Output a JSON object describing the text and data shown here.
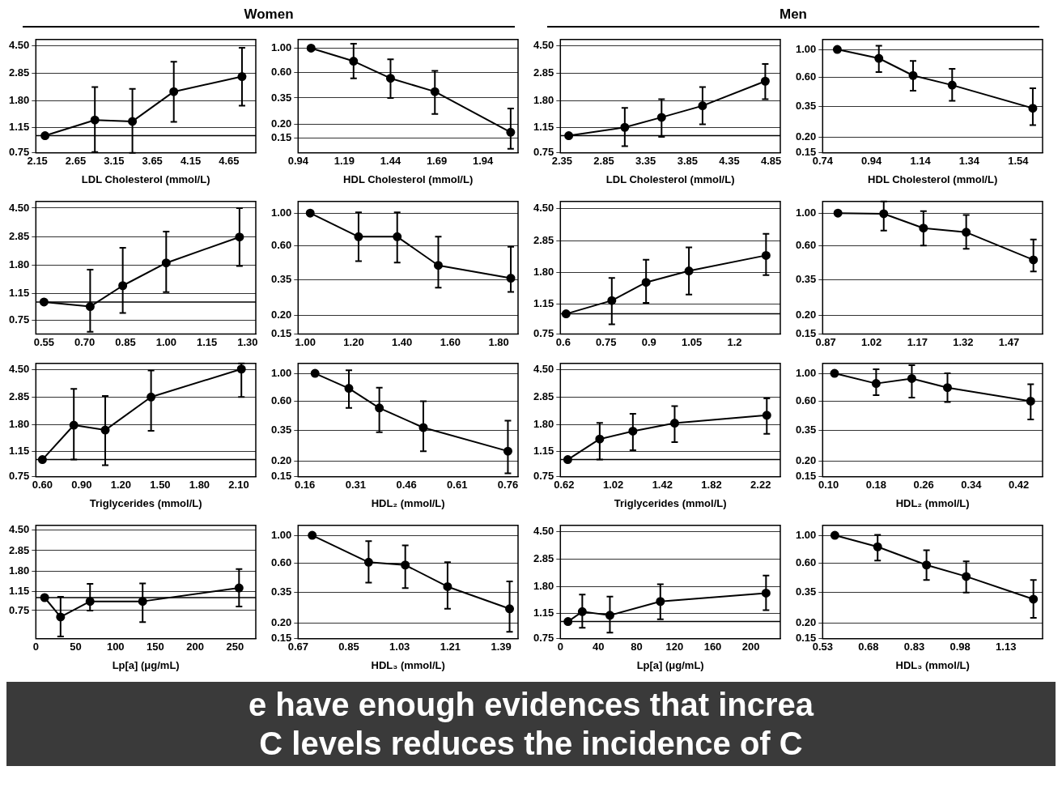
{
  "chart_data": [
    {
      "type": "line",
      "title": "Women",
      "xlabel": "LDL Cholesterol (mmol/L)",
      "x": [
        2.25,
        2.9,
        3.39,
        3.93,
        4.82
      ],
      "series": [
        {
          "color": "#000000",
          "values": [
            1.0,
            1.3,
            1.27,
            2.09,
            2.69
          ],
          "errors": [
            null,
            [
              0.76,
              2.26
            ],
            [
              0.75,
              2.19
            ],
            [
              1.26,
              3.45
            ],
            [
              1.65,
              4.35
            ]
          ]
        }
      ],
      "xlim": [
        2.13,
        5.0
      ],
      "xticks": [
        2.15,
        2.65,
        3.15,
        3.65,
        4.15,
        4.65
      ],
      "ylim": [
        0.75,
        5.0
      ],
      "yticks": [
        {
          "value": 0.75,
          "label": "0.75"
        },
        {
          "value": 1.15,
          "label": "1.15"
        },
        {
          "value": 1.8,
          "label": "1.80"
        },
        {
          "value": 2.85,
          "label": "2.85"
        },
        {
          "value": 4.5,
          "label": "4.50"
        }
      ],
      "ref_lines": [
        {
          "axis": "y",
          "value": 1
        }
      ],
      "log": true,
      "grid": "y",
      "marker": "circle",
      "line_style": "solid",
      "legend": false,
      "annotations": [
        "e have enough evidences that increa",
        "C levels reduces the incidence of C"
      ]
    },
    {
      "type": "line",
      "xlabel": "HDL Cholesterol (mmol/L)",
      "x": [
        1.01,
        1.24,
        1.44,
        1.68,
        2.09
      ],
      "series": [
        {
          "color": "#000000",
          "values": [
            1.0,
            0.76,
            0.53,
            0.4,
            0.17
          ],
          "errors": [
            null,
            [
              0.53,
              1.1
            ],
            [
              0.35,
              0.79
            ],
            [
              0.25,
              0.62
            ],
            [
              0.12,
              0.28
            ]
          ]
        }
      ],
      "xlim": [
        0.94,
        2.13
      ],
      "xticks": [
        0.94,
        1.19,
        1.44,
        1.69,
        1.94
      ],
      "ylim": [
        0.11,
        1.2
      ],
      "yticks": [
        {
          "value": 0.15,
          "label": "0.15"
        },
        {
          "value": 0.2,
          "label": "0.20"
        },
        {
          "value": 0.35,
          "label": "0.35"
        },
        {
          "value": 0.6,
          "label": "0.60"
        },
        {
          "value": 1,
          "label": "1.00"
        }
      ],
      "log": true,
      "grid": "y",
      "marker": "circle",
      "line_style": "solid",
      "legend": false
    },
    {
      "type": "line",
      "title": "Men",
      "xlabel": "LDL Cholesterol (mmol/L)",
      "x": [
        2.43,
        3.1,
        3.54,
        4.03,
        4.78
      ],
      "series": [
        {
          "color": "#000000",
          "values": [
            1.0,
            1.15,
            1.36,
            1.65,
            2.49
          ],
          "errors": [
            null,
            [
              0.84,
              1.59
            ],
            [
              0.98,
              1.84
            ],
            [
              1.21,
              2.26
            ],
            [
              1.84,
              3.32
            ]
          ]
        }
      ],
      "xlim": [
        2.33,
        4.96
      ],
      "xticks": [
        2.35,
        2.85,
        3.35,
        3.85,
        4.35,
        4.85
      ],
      "ylim": [
        0.75,
        5.0
      ],
      "yticks": [
        {
          "value": 0.75,
          "label": "0.75"
        },
        {
          "value": 1.15,
          "label": "1.15"
        },
        {
          "value": 1.8,
          "label": "1.80"
        },
        {
          "value": 2.85,
          "label": "2.85"
        },
        {
          "value": 4.5,
          "label": "4.50"
        }
      ],
      "ref_lines": [
        {
          "axis": "y",
          "value": 1
        }
      ],
      "log": true,
      "grid": "y",
      "marker": "circle",
      "line_style": "solid",
      "legend": false
    },
    {
      "type": "line",
      "xlabel": "HDL Cholesterol (mmol/L)",
      "x": [
        0.8,
        0.97,
        1.11,
        1.27,
        1.6
      ],
      "series": [
        {
          "color": "#000000",
          "values": [
            1.0,
            0.85,
            0.62,
            0.52,
            0.34
          ],
          "errors": [
            null,
            [
              0.66,
              1.07
            ],
            [
              0.47,
              0.81
            ],
            [
              0.39,
              0.7
            ],
            [
              0.25,
              0.49
            ]
          ]
        }
      ],
      "xlim": [
        0.74,
        1.64
      ],
      "xticks": [
        0.74,
        0.94,
        1.14,
        1.34,
        1.54
      ],
      "ylim": [
        0.15,
        1.2
      ],
      "yticks": [
        {
          "value": 0.15,
          "label": "0.15"
        },
        {
          "value": 0.2,
          "label": "0.20"
        },
        {
          "value": 0.35,
          "label": "0.35"
        },
        {
          "value": 0.6,
          "label": "0.60"
        },
        {
          "value": 1,
          "label": "1.00"
        }
      ],
      "log": true,
      "grid": "y",
      "marker": "circle",
      "line_style": "solid",
      "legend": false
    },
    {
      "type": "line",
      "x": [
        0.55,
        0.72,
        0.84,
        1.0,
        1.27
      ],
      "series": [
        {
          "color": "#000000",
          "values": [
            1.0,
            0.93,
            1.3,
            1.87,
            2.83
          ],
          "errors": [
            null,
            [
              0.62,
              1.68
            ],
            [
              0.84,
              2.38
            ],
            [
              1.17,
              3.09
            ],
            [
              1.78,
              4.5
            ]
          ]
        }
      ],
      "xlim": [
        0.52,
        1.33
      ],
      "xticks": [
        0.55,
        {
          "value": 0.7,
          "label": "0.70"
        },
        0.85,
        {
          "value": 1,
          "label": "1.00"
        },
        1.15,
        {
          "value": 1.3,
          "label": "1.30"
        }
      ],
      "ylim": [
        0.6,
        5.0
      ],
      "yticks": [
        {
          "value": 0.75,
          "label": "0.75"
        },
        {
          "value": 1.15,
          "label": "1.15"
        },
        {
          "value": 1.8,
          "label": "1.80"
        },
        {
          "value": 2.85,
          "label": "2.85"
        },
        {
          "value": 4.5,
          "label": "4.50"
        }
      ],
      "ref_lines": [
        {
          "axis": "y",
          "value": 1
        }
      ],
      "log": true,
      "grid": "y",
      "marker": "circle",
      "line_style": "solid",
      "legend": false
    },
    {
      "type": "line",
      "x": [
        1.02,
        1.22,
        1.38,
        1.55,
        1.85
      ],
      "series": [
        {
          "color": "#000000",
          "values": [
            1.0,
            0.69,
            0.69,
            0.44,
            0.36
          ],
          "errors": [
            null,
            [
              0.47,
              1.01
            ],
            [
              0.46,
              1.01
            ],
            [
              0.31,
              0.69
            ],
            [
              0.29,
              0.59
            ]
          ]
        }
      ],
      "xlim": [
        0.97,
        1.88
      ],
      "xticks": [
        {
          "value": 1,
          "label": "1.00"
        },
        {
          "value": 1.2,
          "label": "1.20"
        },
        {
          "value": 1.4,
          "label": "1.40"
        },
        {
          "value": 1.6,
          "label": "1.60"
        },
        {
          "value": 1.8,
          "label": "1.80"
        }
      ],
      "ylim": [
        0.15,
        1.2
      ],
      "yticks": [
        {
          "value": 0.15,
          "label": "0.15"
        },
        {
          "value": 0.2,
          "label": "0.20"
        },
        {
          "value": 0.35,
          "label": "0.35"
        },
        {
          "value": 0.6,
          "label": "0.60"
        },
        {
          "value": 1,
          "label": "1.00"
        }
      ],
      "log": true,
      "grid": "y",
      "marker": "circle",
      "line_style": "solid",
      "legend": false
    },
    {
      "type": "line",
      "x": [
        0.61,
        0.77,
        0.89,
        1.04,
        1.31
      ],
      "series": [
        {
          "color": "#000000",
          "values": [
            1.0,
            1.21,
            1.57,
            1.85,
            2.31
          ],
          "errors": [
            null,
            [
              0.86,
              1.67
            ],
            [
              1.17,
              2.17
            ],
            [
              1.32,
              2.59
            ],
            [
              1.74,
              3.15
            ]
          ]
        }
      ],
      "xlim": [
        0.59,
        1.36
      ],
      "xticks": [
        0.6,
        0.75,
        0.9,
        1.05,
        1.2
      ],
      "ylim": [
        0.75,
        5.0
      ],
      "yticks": [
        {
          "value": 0.75,
          "label": "0.75"
        },
        {
          "value": 1.15,
          "label": "1.15"
        },
        {
          "value": 1.8,
          "label": "1.80"
        },
        {
          "value": 2.85,
          "label": "2.85"
        },
        {
          "value": 4.5,
          "label": "4.50"
        }
      ],
      "ref_lines": [
        {
          "axis": "y",
          "value": 1
        }
      ],
      "log": true,
      "grid": "y",
      "marker": "circle",
      "line_style": "solid",
      "legend": false
    },
    {
      "type": "line",
      "x": [
        0.91,
        1.06,
        1.19,
        1.33,
        1.55
      ],
      "series": [
        {
          "color": "#000000",
          "values": [
            1.0,
            0.99,
            0.79,
            0.74,
            0.48
          ],
          "errors": [
            null,
            [
              0.76,
              1.2
            ],
            [
              0.6,
              1.03
            ],
            [
              0.57,
              0.97
            ],
            [
              0.4,
              0.66
            ]
          ]
        }
      ],
      "xlim": [
        0.86,
        1.58
      ],
      "xticks": [
        0.87,
        1.02,
        1.17,
        1.32,
        1.47
      ],
      "ylim": [
        0.15,
        1.2
      ],
      "yticks": [
        {
          "value": 0.15,
          "label": "0.15"
        },
        {
          "value": 0.2,
          "label": "0.20"
        },
        {
          "value": 0.35,
          "label": "0.35"
        },
        {
          "value": 0.6,
          "label": "0.60"
        },
        {
          "value": 1,
          "label": "1.00"
        }
      ],
      "log": true,
      "grid": "y",
      "marker": "circle",
      "line_style": "solid",
      "legend": false
    },
    {
      "type": "line",
      "xlabel": "Triglycerides (mmol/L)",
      "x": [
        0.6,
        0.84,
        1.08,
        1.43,
        2.12
      ],
      "series": [
        {
          "color": "#000000",
          "values": [
            1.0,
            1.78,
            1.64,
            2.85,
            4.55
          ],
          "errors": [
            null,
            [
              1.0,
              3.27
            ],
            [
              0.91,
              2.9
            ],
            [
              1.62,
              4.45
            ],
            [
              2.85,
              5.0
            ]
          ]
        }
      ],
      "xlim": [
        0.55,
        2.23
      ],
      "xticks": [
        {
          "value": 0.6,
          "label": "0.60"
        },
        {
          "value": 0.9,
          "label": "0.90"
        },
        {
          "value": 1.2,
          "label": "1.20"
        },
        {
          "value": 1.5,
          "label": "1.50"
        },
        {
          "value": 1.8,
          "label": "1.80"
        },
        {
          "value": 2.1,
          "label": "2.10"
        }
      ],
      "ylim": [
        0.75,
        5.0
      ],
      "yticks": [
        {
          "value": 0.75,
          "label": "0.75"
        },
        {
          "value": 1.15,
          "label": "1.15"
        },
        {
          "value": 1.8,
          "label": "1.80"
        },
        {
          "value": 2.85,
          "label": "2.85"
        },
        {
          "value": 4.5,
          "label": "4.50"
        }
      ],
      "ref_lines": [
        {
          "axis": "y",
          "value": 1
        }
      ],
      "log": true,
      "grid": "y",
      "marker": "circle",
      "line_style": "solid",
      "legend": false
    },
    {
      "type": "line",
      "xlabel": "HDL₂ (mmol/L)",
      "x": [
        0.19,
        0.29,
        0.38,
        0.51,
        0.76
      ],
      "series": [
        {
          "color": "#000000",
          "values": [
            1.0,
            0.76,
            0.53,
            0.37,
            0.24
          ],
          "errors": [
            null,
            [
              0.53,
              1.06
            ],
            [
              0.34,
              0.77
            ],
            [
              0.24,
              0.6
            ],
            [
              0.16,
              0.42
            ]
          ]
        }
      ],
      "xlim": [
        0.14,
        0.79
      ],
      "xticks": [
        0.16,
        0.31,
        0.46,
        0.61,
        0.76
      ],
      "ylim": [
        0.15,
        1.2
      ],
      "yticks": [
        {
          "value": 0.15,
          "label": "0.15"
        },
        {
          "value": 0.2,
          "label": "0.20"
        },
        {
          "value": 0.35,
          "label": "0.35"
        },
        {
          "value": 0.6,
          "label": "0.60"
        },
        {
          "value": 1,
          "label": "1.00"
        }
      ],
      "log": true,
      "grid": "y",
      "marker": "circle",
      "line_style": "solid",
      "legend": false
    },
    {
      "type": "line",
      "xlabel": "Triglycerides (mmol/L)",
      "x": [
        0.65,
        0.91,
        1.18,
        1.52,
        2.27
      ],
      "series": [
        {
          "color": "#000000",
          "values": [
            1.0,
            1.41,
            1.61,
            1.84,
            2.1
          ],
          "errors": [
            null,
            [
              1.0,
              1.85
            ],
            [
              1.17,
              2.15
            ],
            [
              1.34,
              2.45
            ],
            [
              1.54,
              2.78
            ]
          ]
        }
      ],
      "xlim": [
        0.59,
        2.38
      ],
      "xticks": [
        0.62,
        1.02,
        1.42,
        1.82,
        2.22
      ],
      "ylim": [
        0.75,
        5.0
      ],
      "yticks": [
        {
          "value": 0.75,
          "label": "0.75"
        },
        {
          "value": 1.15,
          "label": "1.15"
        },
        {
          "value": 1.8,
          "label": "1.80"
        },
        {
          "value": 2.85,
          "label": "2.85"
        },
        {
          "value": 4.5,
          "label": "4.50"
        }
      ],
      "ref_lines": [
        {
          "axis": "y",
          "value": 1
        }
      ],
      "log": true,
      "grid": "y",
      "marker": "circle",
      "line_style": "solid",
      "legend": false
    },
    {
      "type": "line",
      "xlabel": "HDL₂ (mmol/L)",
      "x": [
        0.11,
        0.18,
        0.24,
        0.3,
        0.44
      ],
      "series": [
        {
          "color": "#000000",
          "values": [
            1.0,
            0.83,
            0.91,
            0.77,
            0.6
          ],
          "errors": [
            null,
            [
              0.67,
              1.08
            ],
            [
              0.64,
              1.16
            ],
            [
              0.59,
              1.0
            ],
            [
              0.43,
              0.82
            ]
          ]
        }
      ],
      "xlim": [
        0.09,
        0.46
      ],
      "xticks": [
        {
          "value": 0.1,
          "label": "0.10"
        },
        0.18,
        0.26,
        0.34,
        0.42
      ],
      "ylim": [
        0.15,
        1.2
      ],
      "yticks": [
        {
          "value": 0.15,
          "label": "0.15"
        },
        {
          "value": 0.2,
          "label": "0.20"
        },
        {
          "value": 0.35,
          "label": "0.35"
        },
        {
          "value": 0.6,
          "label": "0.60"
        },
        {
          "value": 1,
          "label": "1.00"
        }
      ],
      "log": true,
      "grid": "y",
      "marker": "circle",
      "line_style": "solid",
      "legend": false
    },
    {
      "type": "line",
      "xlabel": "Lp[a] (μg/mL)",
      "x": [
        11,
        31,
        68,
        134,
        255
      ],
      "series": [
        {
          "color": "#000000",
          "values": [
            1.0,
            0.65,
            0.92,
            0.92,
            1.24
          ],
          "errors": [
            null,
            [
              0.42,
              1.02
            ],
            [
              0.75,
              1.36
            ],
            [
              0.58,
              1.37
            ],
            [
              0.82,
              1.89
            ]
          ]
        }
      ],
      "xlim": [
        0,
        276
      ],
      "xticks": [
        0,
        50,
        100,
        150,
        200,
        250
      ],
      "ylim": [
        0.4,
        5.0
      ],
      "yticks": [
        {
          "value": 0.75,
          "label": "0.75"
        },
        {
          "value": 1.15,
          "label": "1.15"
        },
        {
          "value": 1.8,
          "label": "1.80"
        },
        {
          "value": 2.85,
          "label": "2.85"
        },
        {
          "value": 4.5,
          "label": "4.50"
        }
      ],
      "ref_lines": [
        {
          "axis": "y",
          "value": 1
        }
      ],
      "log": true,
      "grid": "y",
      "marker": "circle",
      "line_style": "solid",
      "legend": false
    },
    {
      "type": "line",
      "xlabel": "HDL₃ (mmol/L)",
      "x": [
        0.72,
        0.92,
        1.05,
        1.2,
        1.42
      ],
      "series": [
        {
          "color": "#000000",
          "values": [
            1.0,
            0.61,
            0.58,
            0.39,
            0.26
          ],
          "errors": [
            null,
            [
              0.42,
              0.9
            ],
            [
              0.38,
              0.83
            ],
            [
              0.26,
              0.61
            ],
            [
              0.17,
              0.43
            ]
          ]
        }
      ],
      "xlim": [
        0.67,
        1.45
      ],
      "xticks": [
        0.67,
        0.85,
        1.03,
        1.21,
        1.39
      ],
      "ylim": [
        0.15,
        1.2
      ],
      "yticks": [
        {
          "value": 0.15,
          "label": "0.15"
        },
        {
          "value": 0.2,
          "label": "0.20"
        },
        {
          "value": 0.35,
          "label": "0.35"
        },
        {
          "value": 0.6,
          "label": "0.60"
        },
        {
          "value": 1,
          "label": "1.00"
        }
      ],
      "log": true,
      "grid": "y",
      "marker": "circle",
      "line_style": "solid",
      "legend": false
    },
    {
      "type": "line",
      "xlabel": "Lp[a] (μg/mL)",
      "x": [
        8,
        23,
        52,
        105,
        216
      ],
      "series": [
        {
          "color": "#000000",
          "values": [
            1.0,
            1.18,
            1.11,
            1.4,
            1.61
          ],
          "errors": [
            null,
            [
              0.9,
              1.57
            ],
            [
              0.83,
              1.52
            ],
            [
              1.04,
              1.87
            ],
            [
              1.21,
              2.16
            ]
          ]
        }
      ],
      "xlim": [
        0,
        231
      ],
      "xticks": [
        0,
        40,
        80,
        120,
        160,
        200
      ],
      "ylim": [
        0.75,
        5.0
      ],
      "yticks": [
        {
          "value": 0.75,
          "label": "0.75"
        },
        {
          "value": 1.15,
          "label": "1.15"
        },
        {
          "value": 1.8,
          "label": "1.80"
        },
        {
          "value": 2.85,
          "label": "2.85"
        },
        {
          "value": 4.5,
          "label": "4.50"
        }
      ],
      "ref_lines": [
        {
          "axis": "y",
          "value": 1
        }
      ],
      "log": true,
      "grid": "y",
      "marker": "circle",
      "line_style": "solid",
      "legend": false
    },
    {
      "type": "line",
      "xlabel": "HDL₃ (mmol/L)",
      "x": [
        0.57,
        0.71,
        0.87,
        1.0,
        1.22
      ],
      "series": [
        {
          "color": "#000000",
          "values": [
            1.0,
            0.81,
            0.58,
            0.47,
            0.31
          ],
          "errors": [
            null,
            [
              0.63,
              1.01
            ],
            [
              0.44,
              0.76
            ],
            [
              0.35,
              0.62
            ],
            [
              0.22,
              0.44
            ]
          ]
        }
      ],
      "xlim": [
        0.53,
        1.25
      ],
      "xticks": [
        0.53,
        0.68,
        0.83,
        0.98,
        1.13
      ],
      "ylim": [
        0.15,
        1.2
      ],
      "yticks": [
        {
          "value": 0.15,
          "label": "0.15"
        },
        {
          "value": 0.2,
          "label": "0.20"
        },
        {
          "value": 0.35,
          "label": "0.35"
        },
        {
          "value": 0.6,
          "label": "0.60"
        },
        {
          "value": 1,
          "label": "1.00"
        }
      ],
      "log": true,
      "grid": "y",
      "marker": "circle",
      "line_style": "solid",
      "legend": false
    }
  ]
}
